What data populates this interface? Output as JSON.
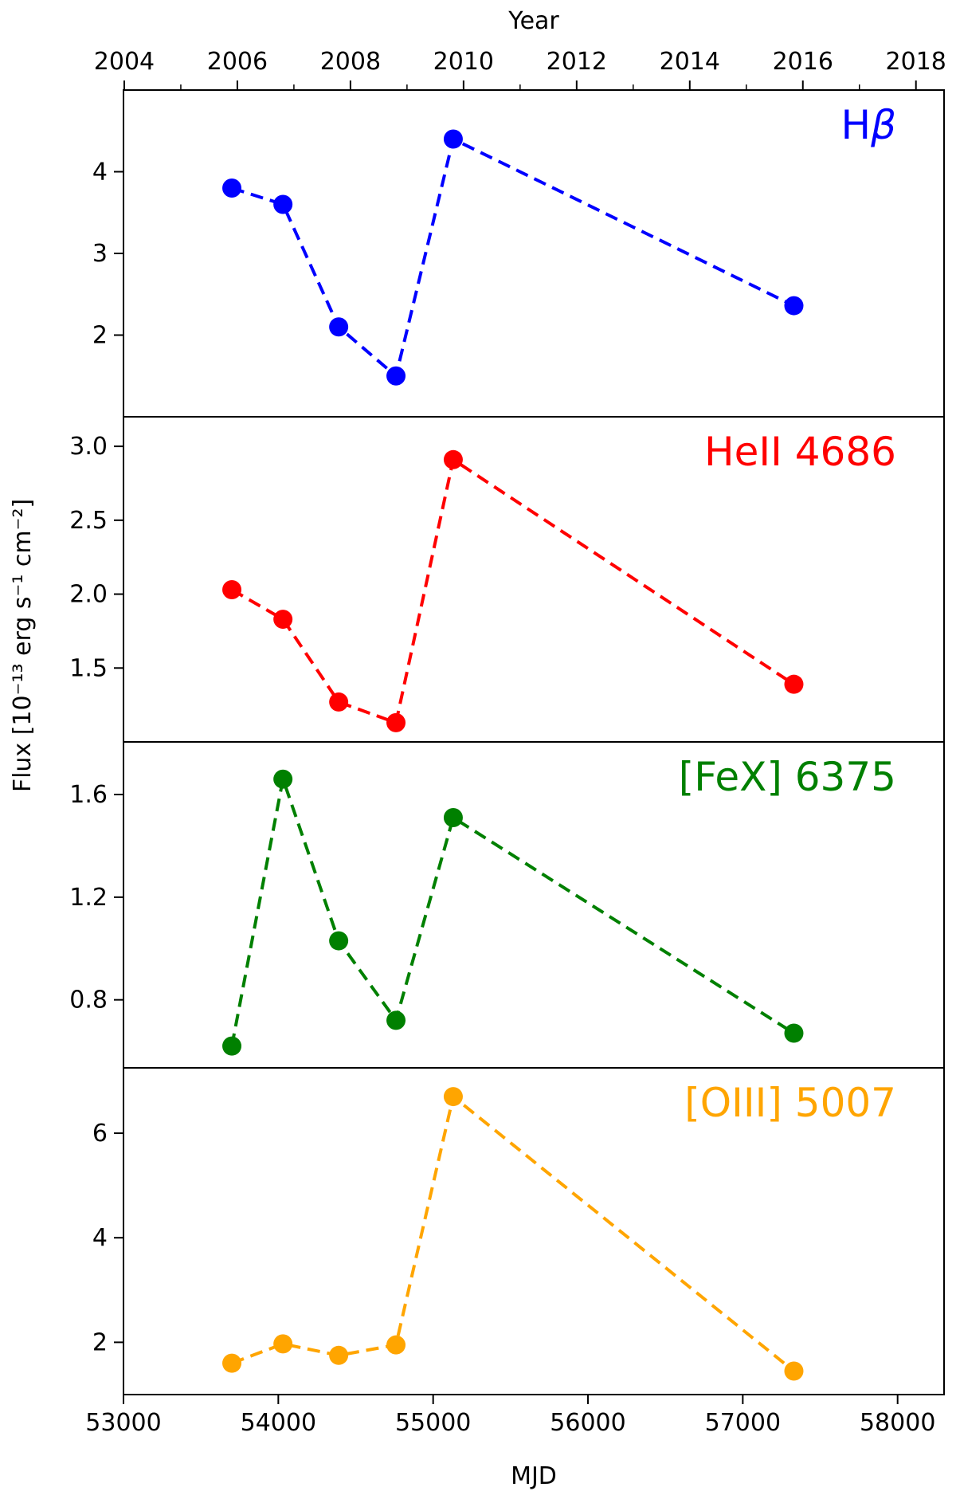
{
  "chart_data": {
    "type": "line",
    "shared_x": {
      "label": "MJD",
      "range": [
        53000,
        58300
      ],
      "ticks": [
        53000,
        54000,
        55000,
        56000,
        57000,
        58000
      ],
      "tick_labels": [
        "53000",
        "54000",
        "55000",
        "56000",
        "57000",
        "58000"
      ]
    },
    "top_axis": {
      "label": "Year",
      "ticks": [
        2004,
        2006,
        2008,
        2010,
        2012,
        2014,
        2016,
        2018
      ],
      "tick_labels": [
        "2004",
        "2006",
        "2008",
        "2010",
        "2012",
        "2014",
        "2016",
        "2018"
      ],
      "minor_ticks": [
        2005,
        2007,
        2009,
        2011,
        2013,
        2015,
        2017
      ]
    },
    "ylabel": "Flux [10⁻¹³ erg s⁻¹ cm⁻²]",
    "x": [
      53700,
      54030,
      54390,
      54760,
      55130,
      57330
    ],
    "panels": [
      {
        "name": "Hβ",
        "name_main": "H",
        "name_italic": "β",
        "color": "#0000ff",
        "values": [
          3.8,
          3.6,
          2.1,
          1.5,
          4.4,
          2.36
        ],
        "ylim": [
          1.0,
          5.0
        ],
        "yticks": [
          2,
          3,
          4
        ],
        "ytick_labels": [
          "2",
          "3",
          "4"
        ]
      },
      {
        "name": "HeII 4686",
        "color": "#ff0000",
        "values": [
          2.03,
          1.83,
          1.27,
          1.13,
          2.91,
          1.39
        ],
        "ylim": [
          1.0,
          3.2
        ],
        "yticks": [
          1.5,
          2.0,
          2.5,
          3.0
        ],
        "ytick_labels": [
          "1.5",
          "2.0",
          "2.5",
          "3.0"
        ]
      },
      {
        "name": "[FeX] 6375",
        "color": "#008000",
        "values": [
          0.62,
          1.66,
          1.03,
          0.72,
          1.51,
          0.67
        ],
        "ylim": [
          0.535,
          1.805
        ],
        "yticks": [
          0.8,
          1.2,
          1.6
        ],
        "ytick_labels": [
          "0.8",
          "1.2",
          "1.6"
        ]
      },
      {
        "name": "[OIII] 5007",
        "color": "#ffa500",
        "values": [
          1.6,
          1.97,
          1.75,
          1.95,
          6.7,
          1.45
        ],
        "ylim": [
          1.0,
          7.25
        ],
        "yticks": [
          2,
          4,
          6
        ],
        "ytick_labels": [
          "2",
          "4",
          "6"
        ]
      }
    ]
  }
}
